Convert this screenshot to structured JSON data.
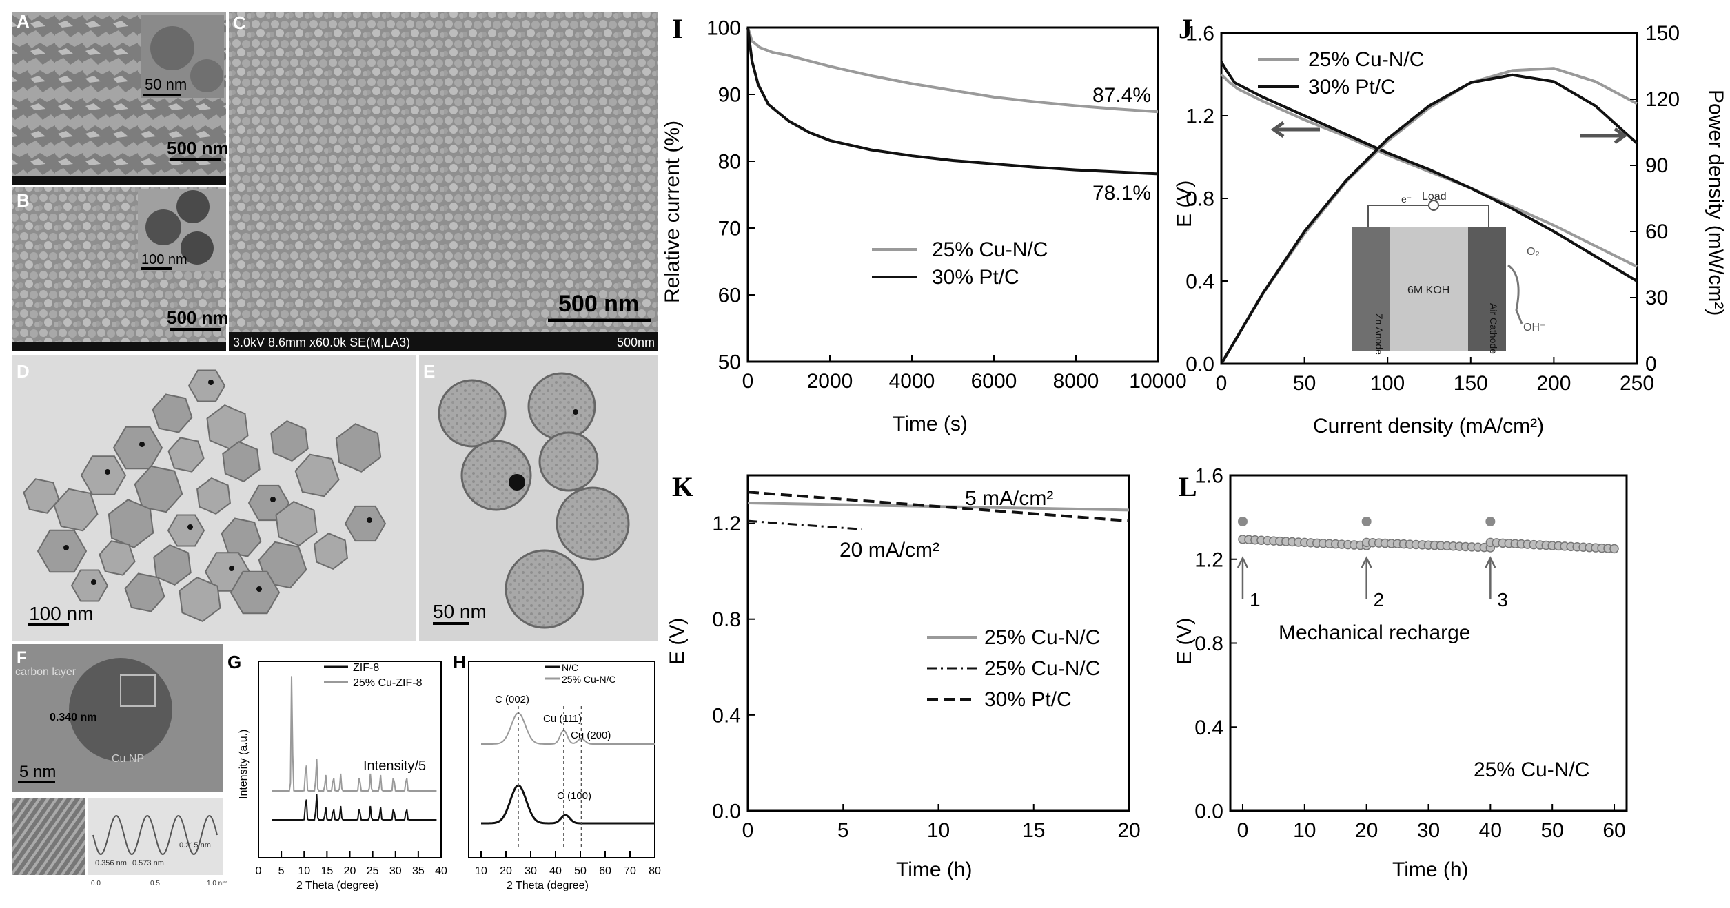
{
  "micrographs": {
    "A": {
      "letter": "A",
      "scalebar": "500 nm",
      "inset_scalebar": "50 nm"
    },
    "B": {
      "letter": "B",
      "scalebar": "500 nm",
      "inset_scalebar": "100 nm"
    },
    "C": {
      "letter": "C",
      "scalebar": "500 nm",
      "footer_left": "3.0kV 8.6mm x60.0k SE(M,LA3)",
      "footer_right": "500nm"
    },
    "D": {
      "letter": "D",
      "scalebar": "100  nm"
    },
    "E": {
      "letter": "E",
      "scalebar": "50  nm"
    },
    "F": {
      "letter": "F",
      "scalebar": "5  nm",
      "carbon_label": "carbon layer",
      "spacing": "0.340 nm",
      "np_label": "Cu NP",
      "profile_a": "0.356 nm",
      "profile_b": "0.573 nm",
      "profile_c": "0.215 nm",
      "profile_ticks": [
        "0.0",
        "0.5",
        "1.0 nm"
      ]
    }
  },
  "colors": {
    "gray_series": "#9a9a9a",
    "black_series": "#111111",
    "marker": "#8a8a8a"
  },
  "chart_data": [
    {
      "panel": "G",
      "type": "line",
      "xlabel": "2 Theta (degree)",
      "ylabel": "Intensity (a.u.)",
      "xlim": [
        0,
        40
      ],
      "xticks": [
        0,
        5,
        10,
        15,
        20,
        25,
        30,
        35,
        40
      ],
      "annotation": "Intensity/5",
      "legend": [
        "ZIF-8",
        "25% Cu-ZIF-8"
      ],
      "peaks_ZIF8": [
        7.3,
        10.4,
        12.7,
        14.7,
        16.4,
        18.0,
        22.1,
        24.5,
        26.7,
        29.6,
        32.4
      ],
      "peaks_CuZIF8": [
        7.3,
        10.4,
        12.7,
        14.7,
        16.4,
        18.0,
        22.1,
        24.5,
        26.7,
        29.6,
        32.4
      ]
    },
    {
      "panel": "H",
      "type": "line",
      "xlabel": "2 Theta (degree)",
      "xlim": [
        5,
        80
      ],
      "xticks": [
        10,
        20,
        30,
        40,
        50,
        60,
        70,
        80
      ],
      "legend": [
        "N/C",
        "25% Cu-N/C"
      ],
      "peak_labels": [
        "C (002)",
        "Cu (111)",
        "Cu (200)",
        "C (100)"
      ],
      "peak_positions": [
        25,
        43.3,
        50.4,
        44
      ]
    },
    {
      "panel": "I",
      "type": "line",
      "title": "",
      "xlabel": "Time (s)",
      "ylabel": "Relative current (%)",
      "xlim": [
        0,
        10000
      ],
      "ylim": [
        50,
        100
      ],
      "xticks": [
        0,
        2000,
        4000,
        6000,
        8000,
        10000
      ],
      "yticks": [
        50,
        60,
        70,
        80,
        90,
        100
      ],
      "legend_position": "center",
      "annotations": [
        "87.4%",
        "78.1%"
      ],
      "series": [
        {
          "name": "25% Cu-N/C",
          "color": "gray",
          "x": [
            0,
            100,
            300,
            600,
            1000,
            2000,
            3000,
            4000,
            5000,
            6000,
            7000,
            8000,
            9000,
            10000
          ],
          "y": [
            100,
            98,
            97,
            96.3,
            95.8,
            94.2,
            92.8,
            91.6,
            90.6,
            89.6,
            88.9,
            88.3,
            87.8,
            87.4
          ]
        },
        {
          "name": "30% Pt/C",
          "color": "black",
          "x": [
            0,
            100,
            250,
            500,
            1000,
            1500,
            2000,
            3000,
            4000,
            5000,
            6000,
            7000,
            8000,
            9000,
            10000
          ],
          "y": [
            100,
            95,
            91.5,
            88.5,
            86,
            84.3,
            83.1,
            81.7,
            80.8,
            80.1,
            79.6,
            79.1,
            78.7,
            78.4,
            78.1
          ]
        }
      ]
    },
    {
      "panel": "J",
      "type": "line",
      "xlabel": "Current density (mA/cm²)",
      "ylabel": "E (V)",
      "y2label": "Power density (mW/cm²)",
      "xlim": [
        0,
        250
      ],
      "ylim": [
        0,
        1.6
      ],
      "y2lim": [
        0,
        150
      ],
      "xticks": [
        0,
        50,
        100,
        150,
        200,
        250
      ],
      "yticks": [
        0.0,
        0.4,
        0.8,
        1.2,
        1.6
      ],
      "y2ticks": [
        0,
        30,
        60,
        90,
        120,
        150
      ],
      "legend_position": "top-left",
      "inset": {
        "load": "Load",
        "electron": "e⁻",
        "anode": "Zn Anode",
        "electrolyte": "6M KOH",
        "cathode": "Air Cathode",
        "o2": "O₂",
        "oh": "OH⁻"
      },
      "series": [
        {
          "name": "25% Cu-N/C",
          "color": "gray",
          "axis": "left",
          "x": [
            0,
            5,
            10,
            25,
            50,
            75,
            100,
            125,
            150,
            175,
            200,
            225,
            250
          ],
          "y": [
            1.4,
            1.36,
            1.33,
            1.27,
            1.18,
            1.1,
            1.01,
            0.93,
            0.85,
            0.76,
            0.67,
            0.57,
            0.47
          ]
        },
        {
          "name": "30% Pt/C",
          "color": "black",
          "axis": "left",
          "x": [
            0,
            3,
            8,
            25,
            50,
            75,
            100,
            125,
            150,
            175,
            200,
            225,
            250
          ],
          "y": [
            1.46,
            1.42,
            1.36,
            1.29,
            1.2,
            1.11,
            1.02,
            0.94,
            0.85,
            0.75,
            0.64,
            0.52,
            0.4
          ]
        },
        {
          "name": "25% Cu-N/C power",
          "color": "gray",
          "axis": "right",
          "x": [
            0,
            25,
            50,
            75,
            100,
            125,
            150,
            175,
            200,
            225,
            250
          ],
          "y": [
            0,
            31.8,
            59,
            82.5,
            101,
            116,
            127.5,
            133,
            134,
            128,
            118
          ]
        },
        {
          "name": "30% Pt/C power",
          "color": "black",
          "axis": "right",
          "x": [
            0,
            25,
            50,
            75,
            100,
            125,
            150,
            175,
            200,
            225,
            250
          ],
          "y": [
            0,
            32,
            60,
            83,
            102,
            117,
            127.5,
            131,
            128,
            117,
            100
          ]
        }
      ]
    },
    {
      "panel": "K",
      "type": "line",
      "xlabel": "Time (h)",
      "ylabel": "E (V)",
      "xlim": [
        0,
        20
      ],
      "ylim": [
        0,
        1.4
      ],
      "xticks": [
        0,
        5,
        10,
        15,
        20
      ],
      "yticks": [
        0.0,
        0.4,
        0.8,
        1.2
      ],
      "legend_position": "center-right",
      "annotations": [
        "5 mA/cm²",
        "20 mA/cm²"
      ],
      "series": [
        {
          "name": "25% Cu-N/C",
          "style": "solid-gray",
          "x": [
            0,
            20
          ],
          "y": [
            1.285,
            1.255
          ]
        },
        {
          "name": "25% Cu-N/C",
          "style": "dash-dot",
          "x": [
            0,
            6
          ],
          "y": [
            1.21,
            1.175
          ]
        },
        {
          "name": "30% Pt/C",
          "style": "dashed",
          "x": [
            0,
            20
          ],
          "y": [
            1.33,
            1.21
          ]
        }
      ]
    },
    {
      "panel": "L",
      "type": "scatter",
      "xlabel": "Time (h)",
      "ylabel": "E (V)",
      "xlim": [
        -2,
        62
      ],
      "ylim": [
        0,
        1.6
      ],
      "xticks": [
        0,
        10,
        20,
        30,
        40,
        50,
        60
      ],
      "yticks": [
        0.0,
        0.4,
        0.8,
        1.2,
        1.6
      ],
      "annotation_main": "Mechanical recharge",
      "sample_label": "25% Cu-N/C",
      "recharge_markers": [
        "1",
        "2",
        "3"
      ],
      "recharge_times": [
        0,
        20,
        40
      ],
      "recharge_points_y": [
        1.38,
        1.38,
        1.38
      ],
      "segments": [
        {
          "x_start": 0,
          "x_end": 20,
          "y_start": 1.295,
          "y_end": 1.265
        },
        {
          "x_start": 20,
          "x_end": 40,
          "y_start": 1.28,
          "y_end": 1.255
        },
        {
          "x_start": 40,
          "x_end": 60,
          "y_start": 1.28,
          "y_end": 1.25
        }
      ]
    }
  ],
  "panel_letters": {
    "I": "I",
    "J": "J",
    "K": "K",
    "L": "L",
    "G": "G",
    "H": "H"
  }
}
